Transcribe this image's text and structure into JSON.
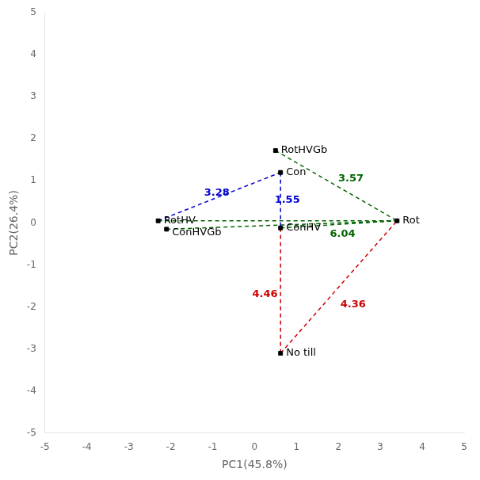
{
  "chart_data": {
    "type": "scatter",
    "xlabel": "PC1(45.8%)",
    "ylabel": "PC2(26.4%)",
    "points": [
      {
        "name": "RotHVGb",
        "x": 0.5,
        "y": 1.72
      },
      {
        "name": "Con",
        "x": 0.62,
        "y": 1.2
      },
      {
        "name": "RotHV",
        "x": -2.3,
        "y": 0.05
      },
      {
        "name": "ConHVGb",
        "x": -2.1,
        "y": -0.15
      },
      {
        "name": "ConHV",
        "x": 0.62,
        "y": -0.12
      },
      {
        "name": "Rot",
        "x": 3.4,
        "y": 0.05
      },
      {
        "name": "No till",
        "x": 0.62,
        "y": -3.1
      }
    ],
    "color": "#000000",
    "marker": "square",
    "segments": [
      {
        "from": "RotHVGb",
        "to": "Rot",
        "color": "#006400",
        "line_style": "dashed",
        "label": "3.57",
        "label_x": 2.3,
        "label_y": 1.05
      },
      {
        "from": "ConHV",
        "to": "Rot",
        "color": "#006400",
        "line_style": "dashed",
        "label": "6.04",
        "label_x": 2.1,
        "label_y": -0.27
      },
      {
        "from": "RotHV",
        "to": "Rot",
        "color": "#006400",
        "line_style": "dashed"
      },
      {
        "from": "ConHVGb",
        "to": "Rot",
        "color": "#006400",
        "line_style": "dashed"
      },
      {
        "from": "RotHV",
        "to": "Con",
        "color": "#0000CC",
        "line_style": "dashed",
        "label": "3.28",
        "label_x": -0.9,
        "label_y": 0.72
      },
      {
        "from": "Con",
        "to": "ConHV",
        "color": "#0000CC",
        "line_style": "dashed",
        "label": "1.55",
        "label_x": 0.78,
        "label_y": 0.55
      },
      {
        "from": "ConHV",
        "to": "No till",
        "color": "#CC0000",
        "line_style": "dashed",
        "label": "4.46",
        "label_x": 0.25,
        "label_y": -1.7
      },
      {
        "from": "No till",
        "to": "Rot",
        "color": "#CC0000",
        "line_style": "dashed",
        "label": "4.36",
        "label_x": 2.35,
        "label_y": -1.95
      }
    ],
    "xlim": [
      -5,
      5
    ],
    "ylim": [
      -5,
      5
    ],
    "xticks": [
      -5,
      -4,
      -3,
      -2,
      -1,
      0,
      1,
      2,
      3,
      4,
      5
    ],
    "yticks": [
      -5,
      -4,
      -3,
      -2,
      -1,
      0,
      1,
      2,
      3,
      4,
      5
    ],
    "grid": false
  }
}
